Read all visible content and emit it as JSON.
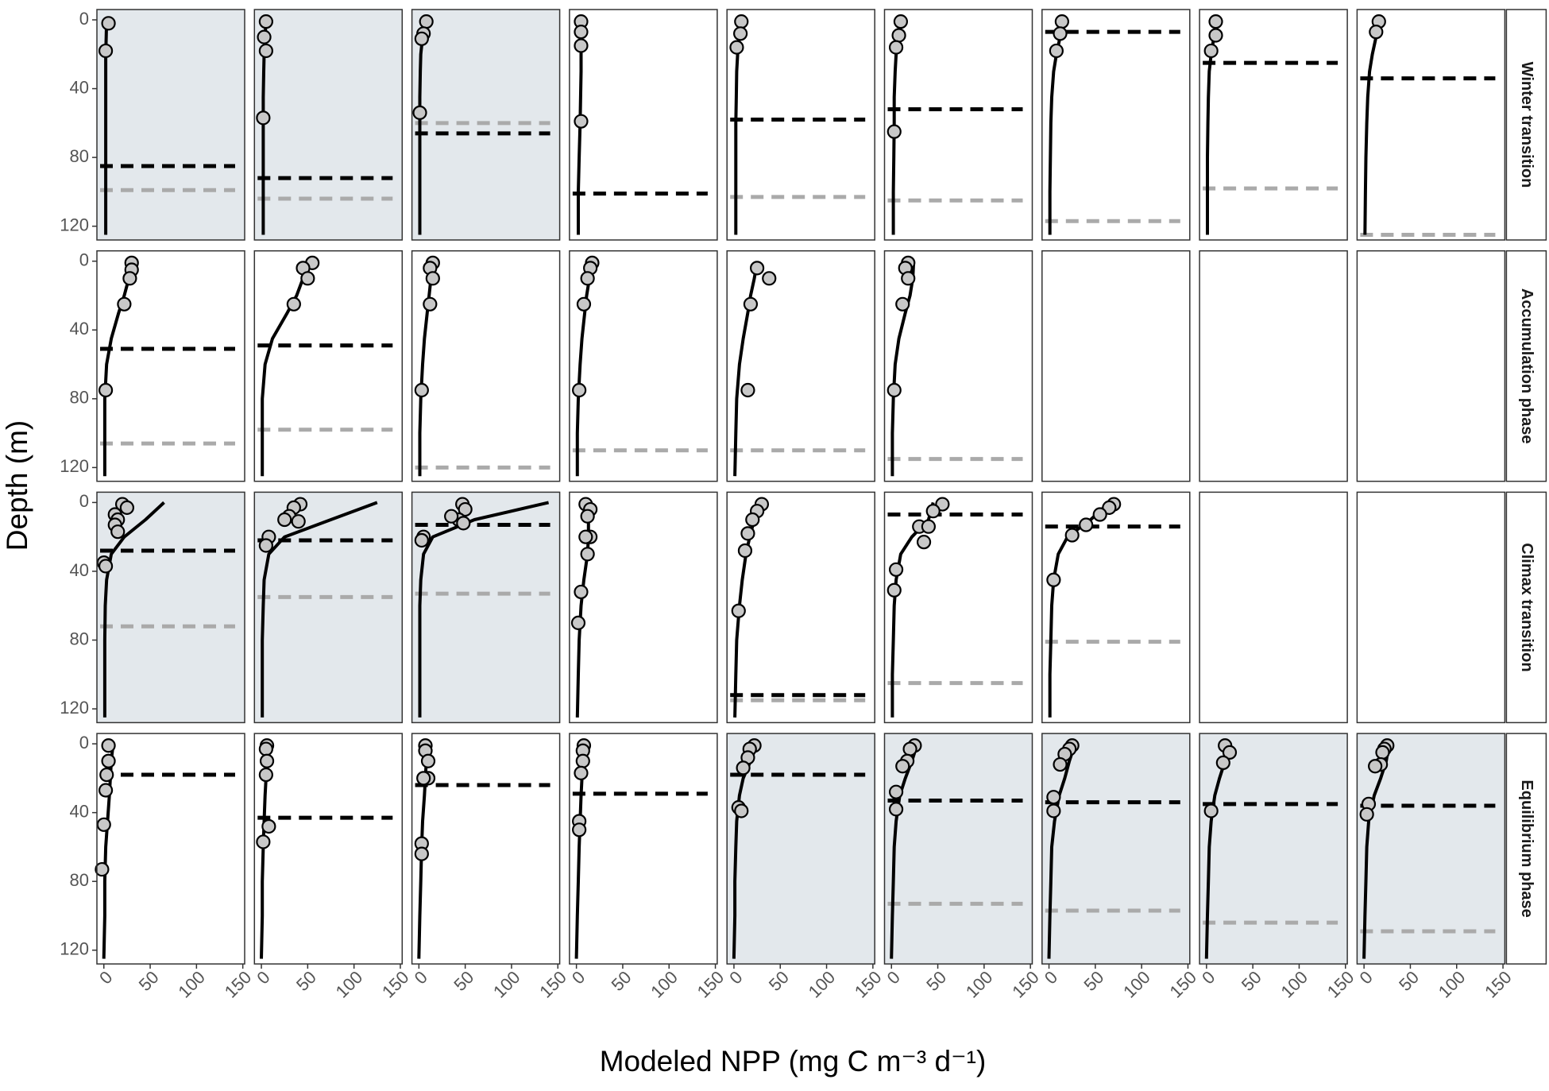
{
  "chart_data": {
    "type": "profile-facets",
    "x_label": "Modeled NPP (mg C m⁻³ d⁻¹)",
    "y_label": "Depth (m)",
    "xlim": [
      -7.5,
      152
    ],
    "xticks": [
      0,
      50,
      100,
      150
    ],
    "ylim": [
      -6,
      128
    ],
    "yticks": [
      0,
      40,
      80,
      120
    ],
    "y_reversed": true,
    "curve_depth": [
      0,
      10,
      20,
      30,
      45,
      60,
      80,
      100,
      125
    ],
    "shade_color": "#e3e8ec",
    "point_color": "#c8c8c8",
    "line_color": "#000000",
    "mld_color": "#000000",
    "euphotic_color": "#aaaaaa",
    "rows": [
      {
        "label": "Winter transition",
        "panels": [
          {
            "shaded": true,
            "points_x": [
              5,
              2
            ],
            "points_y": [
              2,
              18
            ],
            "curve_x": [
              3,
              2.5,
              2,
              2,
              2,
              2,
              2,
              2,
              2
            ],
            "black_line": 85,
            "gray_line": 99
          },
          {
            "shaded": true,
            "points_x": [
              5,
              3,
              5,
              2
            ],
            "points_y": [
              1,
              10,
              18,
              57
            ],
            "curve_x": [
              5,
              4,
              3,
              2.5,
              2,
              2,
              2,
              2,
              2
            ],
            "black_line": 92,
            "gray_line": 104
          },
          {
            "shaded": true,
            "points_x": [
              8,
              5,
              3,
              1
            ],
            "points_y": [
              1,
              8,
              11,
              54
            ],
            "curve_x": [
              7,
              4,
              2,
              1.5,
              1,
              1,
              1,
              1,
              1
            ],
            "black_line": 66,
            "gray_line": 60
          },
          {
            "shaded": false,
            "points_x": [
              5,
              5,
              5,
              5
            ],
            "points_y": [
              1,
              7,
              15,
              59
            ],
            "curve_x": [
              5,
              5,
              5,
              5,
              4.5,
              4,
              3,
              2,
              2
            ],
            "black_line": 101
          },
          {
            "shaded": false,
            "points_x": [
              8,
              7,
              3
            ],
            "points_y": [
              1,
              8,
              16
            ],
            "curve_x": [
              8,
              6,
              4,
              3,
              2.5,
              2,
              2,
              2,
              2
            ],
            "black_line": 58,
            "gray_line": 103
          },
          {
            "shaded": false,
            "points_x": [
              10,
              8,
              5,
              3
            ],
            "points_y": [
              1,
              9,
              16,
              65
            ],
            "curve_x": [
              10,
              8,
              5,
              4,
              3,
              3,
              2.5,
              2,
              2
            ],
            "black_line": 52,
            "gray_line": 105
          },
          {
            "shaded": false,
            "points_x": [
              14,
              12,
              8
            ],
            "points_y": [
              1,
              8,
              18
            ],
            "curve_x": [
              14,
              12,
              8,
              5,
              3,
              2,
              1.5,
              1,
              1
            ],
            "black_line": 7,
            "gray_line": 117
          },
          {
            "shaded": false,
            "points_x": [
              10,
              10,
              5
            ],
            "points_y": [
              1,
              9,
              18
            ],
            "curve_x": [
              11,
              8,
              5,
              3,
              2,
              1.5,
              1,
              1,
              1
            ],
            "black_line": 25,
            "gray_line": 98
          },
          {
            "shaded": false,
            "points_x": [
              16,
              13
            ],
            "points_y": [
              1,
              7
            ],
            "curve_x": [
              16,
              13,
              9,
              6,
              4,
              3,
              2,
              1.5,
              1
            ],
            "black_line": 34,
            "gray_line": 125
          }
        ]
      },
      {
        "label": "Accumulation phase",
        "panels": [
          {
            "shaded": false,
            "points_x": [
              30,
              30,
              28,
              22,
              2
            ],
            "points_y": [
              1,
              5,
              10,
              25,
              75
            ],
            "curve_x": [
              30,
              27,
              22,
              16,
              8,
              3,
              1,
              1,
              1
            ],
            "black_line": 51,
            "gray_line": 106
          },
          {
            "shaded": false,
            "points_x": [
              55,
              45,
              50,
              35
            ],
            "points_y": [
              1,
              4,
              10,
              25
            ],
            "curve_x": [
              50,
              45,
              38,
              28,
              12,
              4,
              1,
              1,
              1
            ],
            "black_line": 49,
            "gray_line": 98
          },
          {
            "shaded": false,
            "points_x": [
              15,
              12,
              15,
              12,
              3
            ],
            "points_y": [
              1,
              4,
              10,
              25,
              75
            ],
            "curve_x": [
              15,
              13,
              11,
              9,
              6,
              4,
              2,
              1,
              1
            ],
            "gray_line": 120
          },
          {
            "shaded": false,
            "points_x": [
              17,
              15,
              12,
              8,
              3
            ],
            "points_y": [
              1,
              4,
              10,
              25,
              75
            ],
            "curve_x": [
              17,
              14,
              11,
              9,
              6,
              4,
              2,
              1,
              1
            ],
            "gray_line": 110
          },
          {
            "shaded": false,
            "points_x": [
              25,
              38,
              18,
              15
            ],
            "points_y": [
              4,
              10,
              25,
              75
            ],
            "curve_x": [
              25,
              22,
              18,
              15,
              10,
              6,
              3,
              2,
              1
            ],
            "gray_line": 110
          },
          {
            "shaded": false,
            "points_x": [
              18,
              15,
              18,
              12,
              3
            ],
            "points_y": [
              1,
              4,
              10,
              25,
              75
            ],
            "curve_x": [
              24,
              23,
              20,
              15,
              8,
              4,
              2,
              1,
              1
            ],
            "gray_line": 115
          }
        ]
      },
      {
        "label": "Climax transition",
        "panels": [
          {
            "shaded": true,
            "points_x": [
              20,
              25,
              12,
              15,
              12,
              15,
              0,
              2
            ],
            "points_y": [
              1,
              3,
              7,
              10,
              13,
              17,
              35,
              37
            ],
            "curve_x": [
              65,
              45,
              22,
              8,
              3,
              1.5,
              1,
              1,
              1
            ],
            "black_line": 28,
            "gray_line": 72
          },
          {
            "shaded": true,
            "points_x": [
              42,
              35,
              30,
              25,
              40,
              8,
              5
            ],
            "points_y": [
              1,
              3,
              8,
              10,
              11,
              20,
              25
            ],
            "curve_x": [
              125,
              75,
              25,
              8,
              3,
              2,
              1,
              1,
              1
            ],
            "black_line": 22,
            "gray_line": 55
          },
          {
            "shaded": true,
            "points_x": [
              47,
              50,
              43,
              48,
              35,
              5,
              3
            ],
            "points_y": [
              1,
              4,
              10,
              12,
              8,
              20,
              22
            ],
            "curve_x": [
              140,
              60,
              15,
              5,
              2,
              1,
              1,
              1,
              1
            ],
            "black_line": 13,
            "gray_line": 53
          },
          {
            "shaded": false,
            "points_x": [
              10,
              15,
              12,
              15,
              10,
              12,
              5,
              2
            ],
            "points_y": [
              1,
              4,
              8,
              20,
              20,
              30,
              52,
              70
            ],
            "curve_x": [
              12,
              13,
              13,
              12,
              8,
              5,
              3,
              2,
              1
            ]
          },
          {
            "shaded": false,
            "points_x": [
              30,
              25,
              20,
              15,
              12,
              5
            ],
            "points_y": [
              1,
              5,
              10,
              18,
              28,
              63
            ],
            "curve_x": [
              28,
              22,
              17,
              13,
              9,
              6,
              3,
              2,
              1
            ],
            "black_line": 112,
            "gray_line": 115
          },
          {
            "shaded": false,
            "points_x": [
              55,
              45,
              30,
              40,
              35,
              5,
              3
            ],
            "points_y": [
              1,
              5,
              14,
              14,
              23,
              39,
              51
            ],
            "curve_x": [
              45,
              40,
              22,
              10,
              5,
              3,
              2,
              1,
              1
            ],
            "black_line": 7,
            "gray_line": 105
          },
          {
            "shaded": false,
            "points_x": [
              70,
              65,
              55,
              40,
              25,
              5
            ],
            "points_y": [
              1,
              3,
              7,
              13,
              19,
              45
            ],
            "curve_x": [
              65,
              45,
              20,
              10,
              5,
              3,
              2,
              1,
              1
            ],
            "black_line": 14,
            "gray_line": 81
          }
        ]
      },
      {
        "label": "Equilibrium phase",
        "panels": [
          {
            "shaded": false,
            "points_x": [
              5,
              5,
              3,
              2,
              0,
              -2
            ],
            "points_y": [
              1,
              10,
              18,
              27,
              47,
              73
            ],
            "curve_x": [
              10,
              8,
              7,
              6,
              4,
              2,
              1,
              1,
              0
            ],
            "black_line": 18
          },
          {
            "shaded": false,
            "points_x": [
              6,
              5,
              6,
              5,
              8,
              2
            ],
            "points_y": [
              1,
              3,
              10,
              18,
              48,
              57
            ],
            "curve_x": [
              6,
              5,
              5,
              4,
              3,
              2,
              1,
              1,
              0
            ],
            "black_line": 43
          },
          {
            "shaded": false,
            "points_x": [
              7,
              7,
              10,
              10,
              5,
              3,
              3
            ],
            "points_y": [
              1,
              4,
              10,
              20,
              20,
              58,
              64
            ],
            "curve_x": [
              10,
              8,
              7,
              6,
              4,
              3,
              2,
              1,
              0
            ],
            "black_line": 24
          },
          {
            "shaded": false,
            "points_x": [
              8,
              7,
              7,
              5,
              3,
              3
            ],
            "points_y": [
              1,
              4,
              10,
              17,
              45,
              50
            ],
            "curve_x": [
              9,
              8,
              6,
              5,
              4,
              3,
              2,
              1,
              0
            ],
            "black_line": 29
          },
          {
            "shaded": true,
            "points_x": [
              22,
              17,
              15,
              10,
              5,
              8
            ],
            "points_y": [
              1,
              3,
              8,
              14,
              37,
              39
            ],
            "curve_x": [
              25,
              18,
              10,
              6,
              3,
              2,
              1,
              1,
              0
            ],
            "black_line": 18
          },
          {
            "shaded": true,
            "points_x": [
              25,
              20,
              17,
              12,
              5,
              5
            ],
            "points_y": [
              1,
              3,
              10,
              13,
              28,
              38
            ],
            "curve_x": [
              28,
              22,
              15,
              9,
              5,
              3,
              2,
              1,
              0
            ],
            "black_line": 33,
            "gray_line": 93
          },
          {
            "shaded": true,
            "points_x": [
              25,
              22,
              17,
              12,
              5,
              5
            ],
            "points_y": [
              1,
              3,
              6,
              12,
              31,
              39
            ],
            "curve_x": [
              28,
              22,
              17,
              11,
              6,
              3,
              2,
              1,
              0
            ],
            "black_line": 34,
            "gray_line": 97
          },
          {
            "shaded": true,
            "points_x": [
              20,
              25,
              18,
              5
            ],
            "points_y": [
              1,
              5,
              11,
              39
            ],
            "curve_x": [
              25,
              20,
              14,
              9,
              5,
              3,
              2,
              1,
              0
            ],
            "black_line": 35,
            "gray_line": 104
          },
          {
            "shaded": true,
            "points_x": [
              25,
              22,
              20,
              18,
              12,
              5,
              3
            ],
            "points_y": [
              1,
              3,
              5,
              12,
              13,
              35,
              41
            ],
            "curve_x": [
              27,
              24,
              18,
              11,
              5,
              3,
              2,
              1,
              0
            ],
            "black_line": 36,
            "gray_line": 109
          }
        ]
      }
    ]
  }
}
